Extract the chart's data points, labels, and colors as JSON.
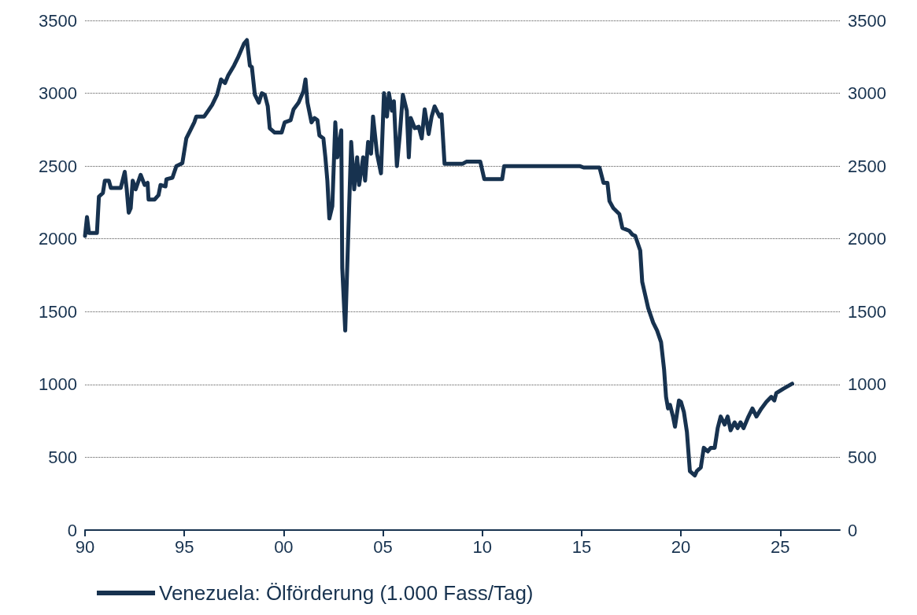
{
  "chart_data": {
    "type": "line",
    "legend": "bottom left",
    "grid": "y",
    "line_style": "solid",
    "marker": "none",
    "xlim": [
      1990,
      2028
    ],
    "xticks": [
      {
        "value": 1990,
        "label": "90"
      },
      {
        "value": 1995,
        "label": "95"
      },
      {
        "value": 2000,
        "label": "00"
      },
      {
        "value": 2005,
        "label": "05"
      },
      {
        "value": 2010,
        "label": "10"
      },
      {
        "value": 2015,
        "label": "15"
      },
      {
        "value": 2020,
        "label": "20"
      },
      {
        "value": 2025,
        "label": "25"
      }
    ],
    "ylim": [
      0,
      3500
    ],
    "yticks": [
      0,
      500,
      1000,
      1500,
      2000,
      2500,
      3000,
      3500
    ],
    "y2lim": [
      0,
      3500
    ],
    "y2ticks": [
      0,
      500,
      1000,
      1500,
      2000,
      2500,
      3000,
      3500
    ],
    "x": [
      1990.0,
      1990.1,
      1990.2,
      1990.6,
      1990.7,
      1990.9,
      1991.0,
      1991.2,
      1991.3,
      1991.8,
      1992.0,
      1992.1,
      1992.2,
      1992.3,
      1992.4,
      1992.55,
      1992.8,
      1993.0,
      1993.15,
      1993.2,
      1993.5,
      1993.7,
      1993.8,
      1994.05,
      1994.1,
      1994.4,
      1994.6,
      1994.9,
      1995.1,
      1995.3,
      1995.5,
      1995.6,
      1996.0,
      1996.2,
      1996.4,
      1996.65,
      1996.85,
      1997.05,
      1997.2,
      1997.5,
      1997.7,
      1998.0,
      1998.15,
      1998.3,
      1998.4,
      1998.55,
      1998.75,
      1998.9,
      1999.05,
      1999.2,
      1999.3,
      1999.55,
      1999.9,
      2000.05,
      2000.35,
      2000.5,
      2000.75,
      2001.0,
      2001.1,
      2001.2,
      2001.4,
      2001.55,
      2001.7,
      2001.8,
      2002.0,
      2002.1,
      2002.2,
      2002.3,
      2002.45,
      2002.6,
      2002.7,
      2002.9,
      2002.95,
      2003.1,
      2003.3,
      2003.4,
      2003.55,
      2003.7,
      2003.8,
      2004.0,
      2004.1,
      2004.25,
      2004.4,
      2004.5,
      2004.7,
      2004.9,
      2005.05,
      2005.2,
      2005.3,
      2005.45,
      2005.55,
      2005.7,
      2005.85,
      2006.0,
      2006.2,
      2006.3,
      2006.4,
      2006.6,
      2006.8,
      2006.95,
      2007.1,
      2007.3,
      2007.45,
      2007.6,
      2007.85,
      2007.95,
      2008.1,
      2009.0,
      2009.2,
      2009.9,
      2010.1,
      2011.0,
      2011.1,
      2014.9,
      2015.1,
      2015.9,
      2016.1,
      2016.3,
      2016.4,
      2016.6,
      2016.9,
      2017.05,
      2017.4,
      2017.55,
      2017.7,
      2017.95,
      2018.05,
      2018.2,
      2018.35,
      2018.6,
      2018.8,
      2019.0,
      2019.15,
      2019.25,
      2019.35,
      2019.45,
      2019.6,
      2019.7,
      2019.9,
      2020.0,
      2020.15,
      2020.3,
      2020.45,
      2020.7,
      2020.8,
      2021.0,
      2021.15,
      2021.35,
      2021.5,
      2021.7,
      2021.85,
      2022.0,
      2022.2,
      2022.35,
      2022.5,
      2022.7,
      2022.85,
      2023.0,
      2023.15,
      2023.4,
      2023.6,
      2023.8,
      2024.05,
      2024.3,
      2024.55,
      2024.7,
      2024.8,
      2025.15,
      2025.6
    ],
    "series": [
      {
        "name": "Venezuela: Ölförderung (1.000 Fass/Tag)",
        "color": "#17324f",
        "values": [
          2020,
          2150,
          2040,
          2040,
          2290,
          2315,
          2400,
          2400,
          2350,
          2350,
          2460,
          2340,
          2180,
          2210,
          2400,
          2340,
          2440,
          2370,
          2385,
          2270,
          2270,
          2300,
          2370,
          2360,
          2410,
          2420,
          2500,
          2520,
          2690,
          2745,
          2800,
          2840,
          2840,
          2880,
          2920,
          2990,
          3095,
          3070,
          3120,
          3190,
          3245,
          3340,
          3365,
          3190,
          3180,
          2990,
          2935,
          3000,
          2990,
          2910,
          2760,
          2730,
          2730,
          2800,
          2815,
          2890,
          2935,
          3015,
          3095,
          2935,
          2800,
          2830,
          2815,
          2710,
          2690,
          2560,
          2400,
          2140,
          2225,
          2800,
          2560,
          2745,
          1800,
          1370,
          2235,
          2665,
          2340,
          2560,
          2370,
          2560,
          2400,
          2665,
          2585,
          2840,
          2585,
          2450,
          3000,
          2840,
          3000,
          2880,
          2945,
          2500,
          2720,
          2990,
          2880,
          2560,
          2830,
          2760,
          2770,
          2690,
          2890,
          2720,
          2840,
          2910,
          2840,
          2855,
          2515,
          2515,
          2530,
          2530,
          2410,
          2410,
          2500,
          2500,
          2490,
          2490,
          2385,
          2385,
          2260,
          2210,
          2170,
          2075,
          2055,
          2030,
          2020,
          1920,
          1705,
          1615,
          1525,
          1425,
          1370,
          1290,
          1105,
          915,
          835,
          860,
          780,
          710,
          890,
          880,
          810,
          675,
          405,
          375,
          405,
          430,
          565,
          540,
          565,
          565,
          700,
          780,
          725,
          780,
          685,
          740,
          700,
          740,
          700,
          780,
          835,
          780,
          835,
          880,
          915,
          890,
          940,
          970,
          1005
        ]
      }
    ]
  }
}
